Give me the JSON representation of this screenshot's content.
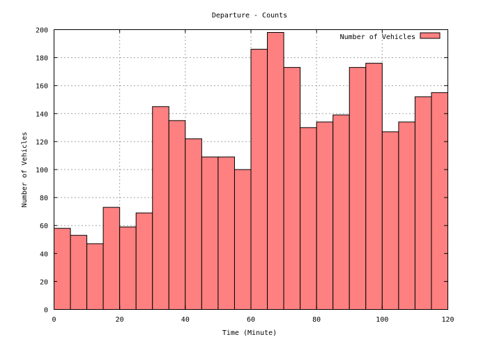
{
  "chart_data": {
    "type": "bar",
    "title": "Departure - Counts",
    "xlabel": "Time (Minute)",
    "ylabel": "Number of Vehicles",
    "legend": {
      "label": "Number of Vehicles",
      "position": "top-right",
      "color": "#ff8080"
    },
    "bin_width": 5,
    "x": [
      0,
      5,
      10,
      15,
      20,
      25,
      30,
      35,
      40,
      45,
      50,
      55,
      60,
      65,
      70,
      75,
      80,
      85,
      90,
      95,
      100,
      105,
      110,
      115
    ],
    "values": [
      58,
      53,
      47,
      73,
      59,
      69,
      145,
      135,
      122,
      109,
      109,
      100,
      186,
      198,
      173,
      130,
      134,
      139,
      173,
      176,
      127,
      134,
      152,
      155
    ],
    "xlim": [
      0,
      120
    ],
    "ylim": [
      0,
      200
    ],
    "xticks": [
      0,
      20,
      40,
      60,
      80,
      100,
      120
    ],
    "yticks": [
      0,
      20,
      40,
      60,
      80,
      100,
      120,
      140,
      160,
      180,
      200
    ],
    "grid": true,
    "bar_color": "#ff8080"
  }
}
